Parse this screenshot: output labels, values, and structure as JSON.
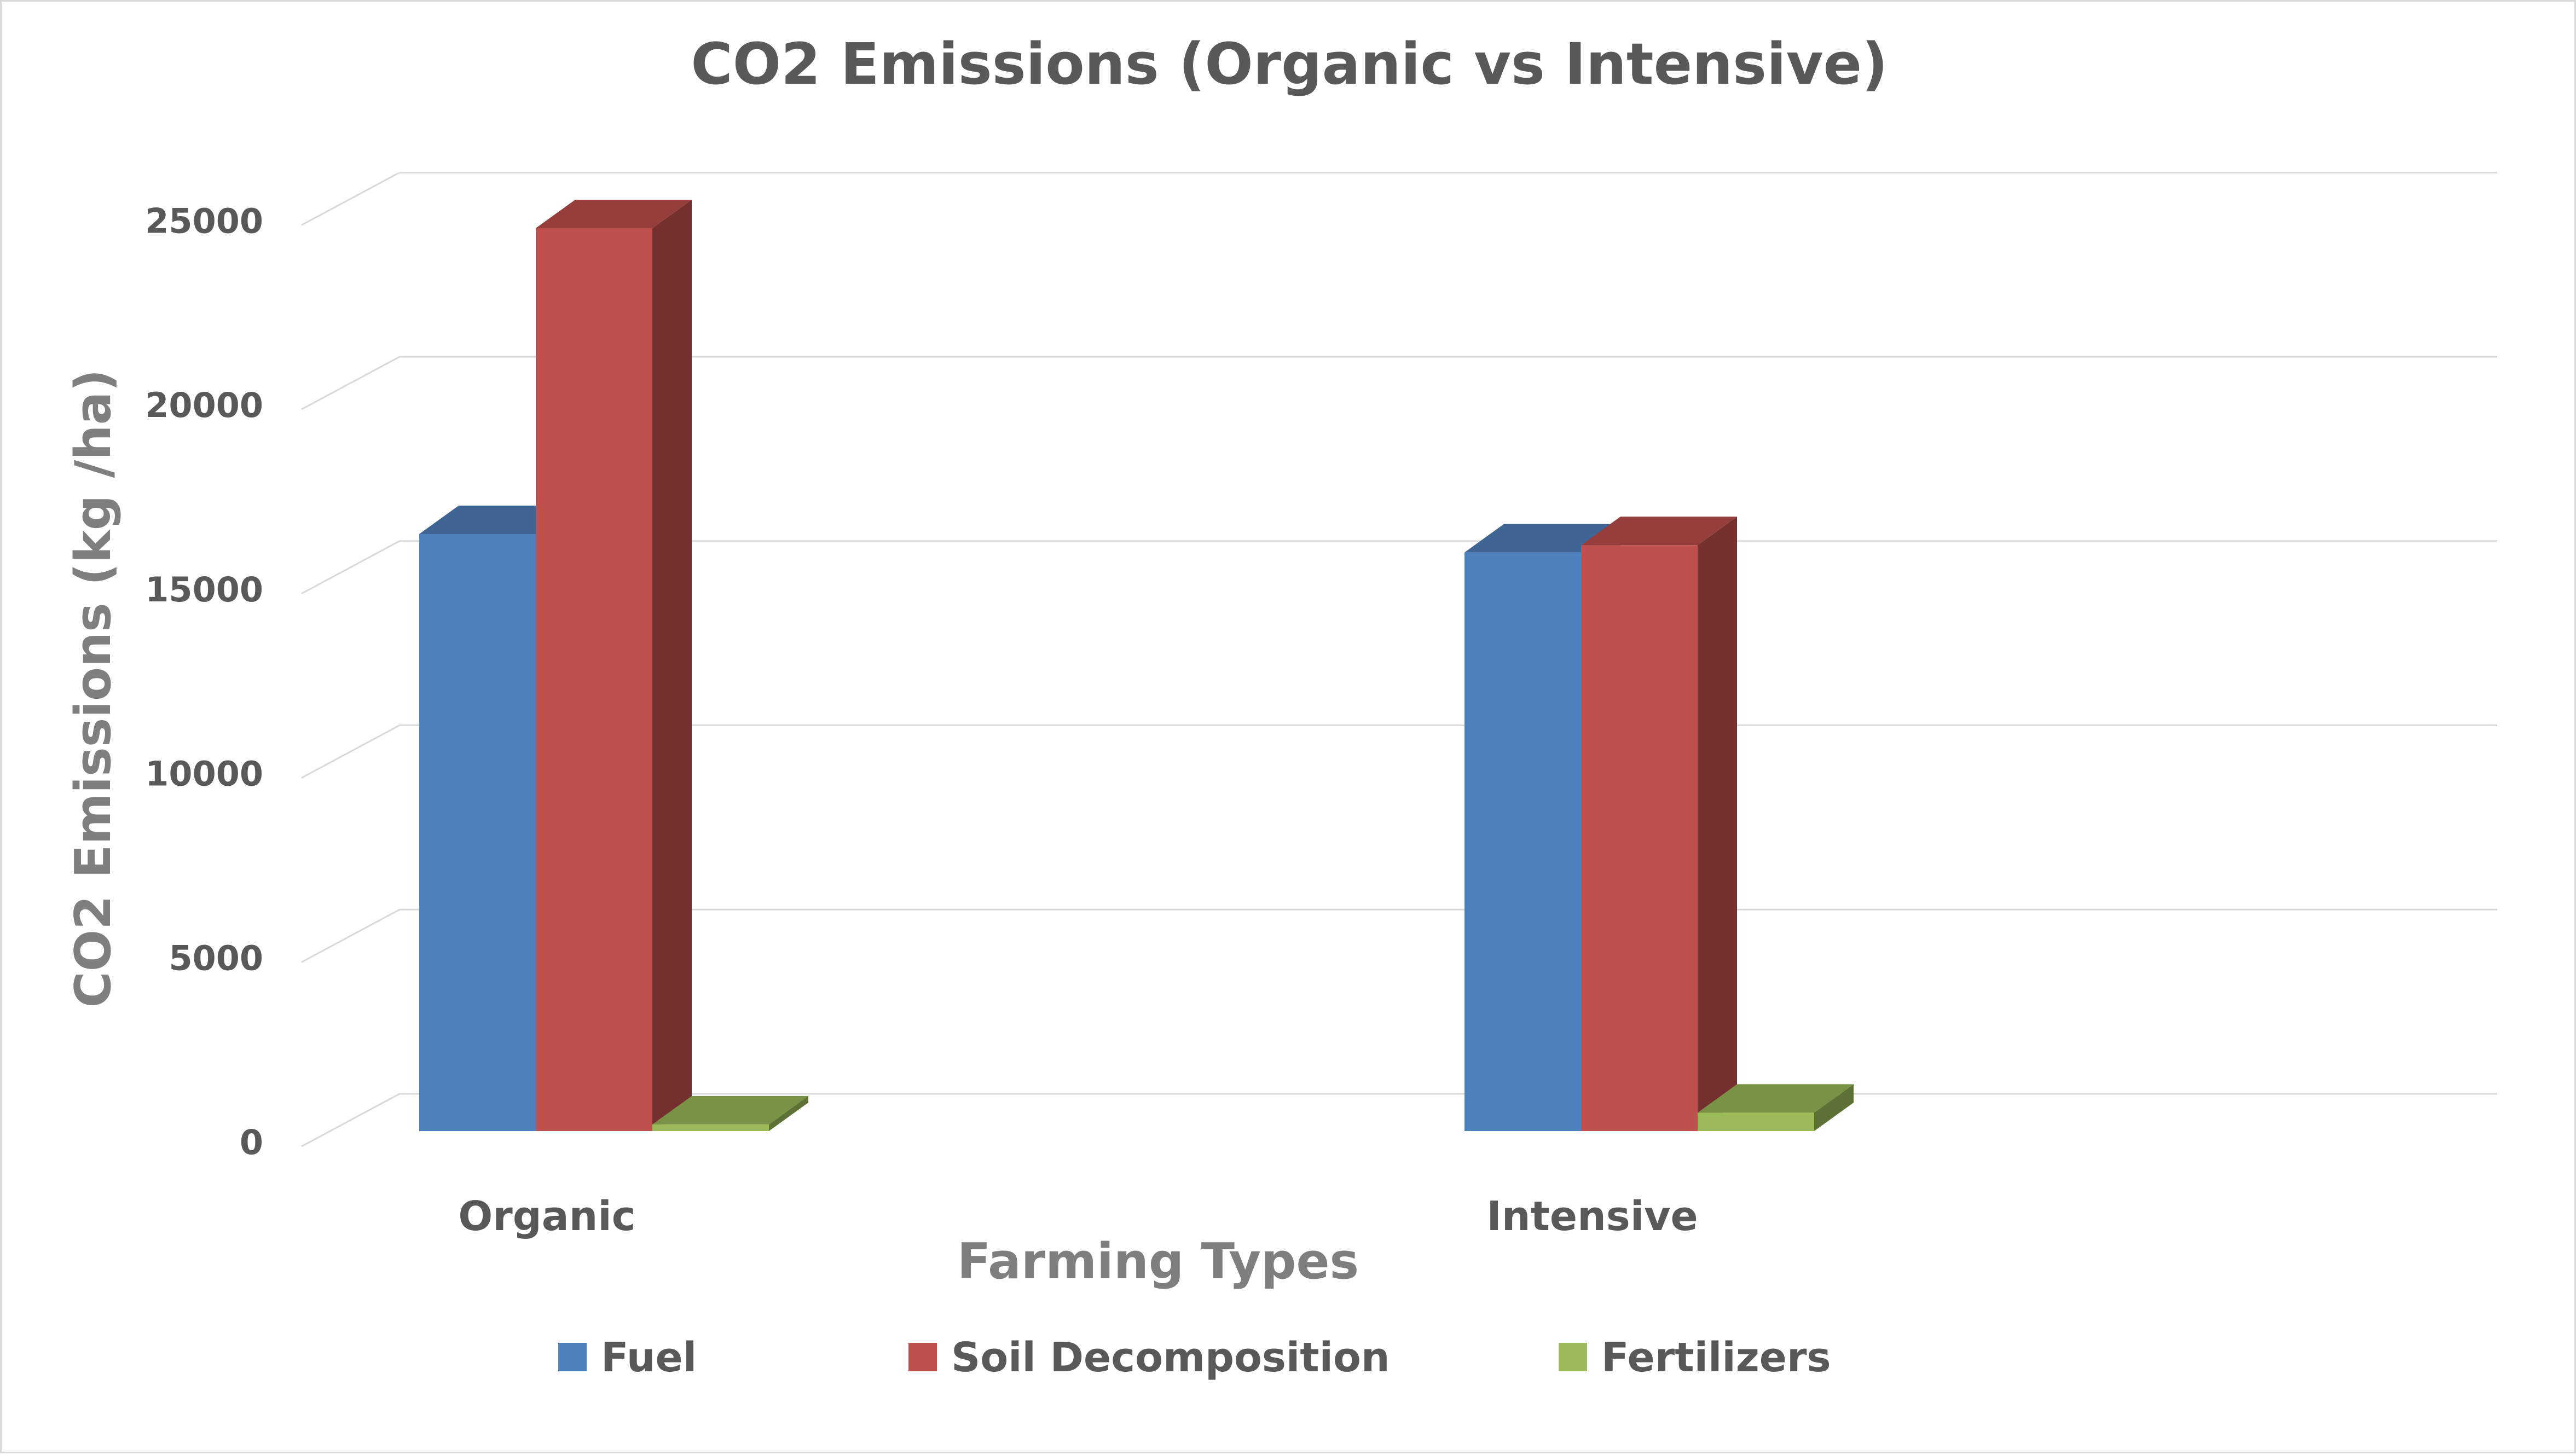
{
  "chart_data": {
    "type": "bar",
    "title": "CO2 Emissions (Organic vs Intensive)",
    "xlabel": "Farming Types",
    "ylabel": "CO2 Emissions (kg /ha)",
    "categories": [
      "Organic",
      "Intensive"
    ],
    "series": [
      {
        "name": "Fuel",
        "values": [
          16200,
          15700
        ],
        "color": "#4f81bd"
      },
      {
        "name": "Soil Decomposition",
        "values": [
          24500,
          15900
        ],
        "color": "#c0504d"
      },
      {
        "name": "Fertilizers",
        "values": [
          180,
          500
        ],
        "color": "#9bbb59"
      }
    ],
    "ylim": [
      0,
      25000
    ],
    "yticks": [
      0,
      5000,
      10000,
      15000,
      20000,
      25000
    ],
    "grid": true,
    "legend": "bottom",
    "style": "3d-clustered-column"
  }
}
